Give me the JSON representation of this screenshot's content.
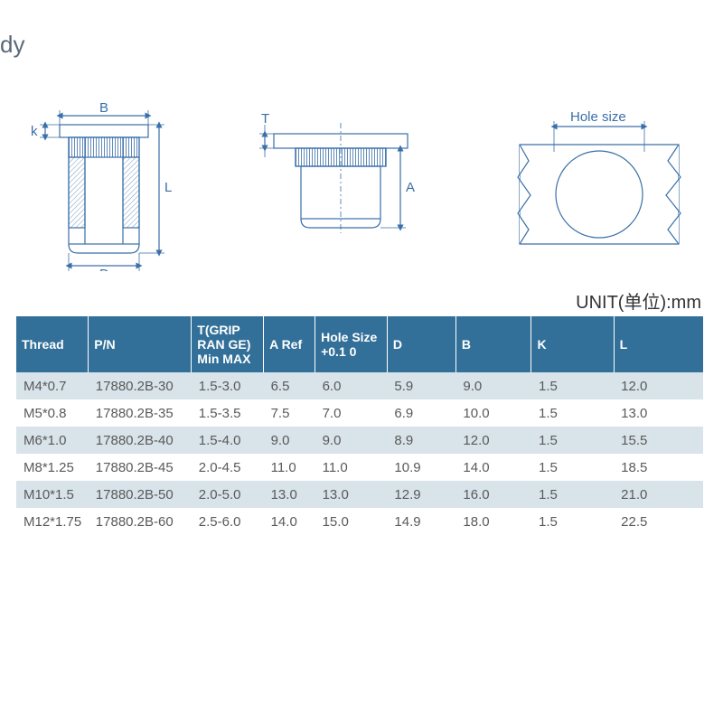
{
  "title_fragment": "dy",
  "unit_label": "UNIT(单位):mm",
  "diagram": {
    "stroke": "#3a6fa8",
    "stroke_width": 1.2,
    "hatch_spacing": 3,
    "labels": {
      "B": "B",
      "k": "k",
      "L": "L",
      "D": "D",
      "T": "T",
      "A": "A",
      "HoleSize": "Hole size"
    },
    "label_color": "#3a6fa8",
    "label_fontsize": 15
  },
  "table": {
    "header_bg": "#337099",
    "header_color": "#ffffff",
    "row_alt_bg": "#d8e3ea",
    "row_bg": "#ffffff",
    "header_fontsize": 14,
    "cell_fontsize": 15,
    "columns": [
      {
        "key": "thread",
        "label": "Thread"
      },
      {
        "key": "pn",
        "label": "P/N"
      },
      {
        "key": "t",
        "label": "T(GRIP RAN GE) Min MAX"
      },
      {
        "key": "a",
        "label": "A Ref"
      },
      {
        "key": "hole",
        "label": "Hole Size +0.1 0"
      },
      {
        "key": "d",
        "label": "D"
      },
      {
        "key": "b",
        "label": "B"
      },
      {
        "key": "k",
        "label": "K"
      },
      {
        "key": "l",
        "label": "L"
      }
    ],
    "rows": [
      {
        "thread": "M4*0.7",
        "pn": "17880.2B-30",
        "t": "1.5-3.0",
        "a": "6.5",
        "hole": "6.0",
        "d": "5.9",
        "b": "9.0",
        "k": "1.5",
        "l": "12.0"
      },
      {
        "thread": "M5*0.8",
        "pn": "17880.2B-35",
        "t": "1.5-3.5",
        "a": "7.5",
        "hole": "7.0",
        "d": "6.9",
        "b": "10.0",
        "k": "1.5",
        "l": "13.0"
      },
      {
        "thread": "M6*1.0",
        "pn": "17880.2B-40",
        "t": "1.5-4.0",
        "a": "9.0",
        "hole": "9.0",
        "d": "8.9",
        "b": "12.0",
        "k": "1.5",
        "l": "15.5"
      },
      {
        "thread": "M8*1.25",
        "pn": "17880.2B-45",
        "t": "2.0-4.5",
        "a": "11.0",
        "hole": "11.0",
        "d": "10.9",
        "b": "14.0",
        "k": "1.5",
        "l": "18.5"
      },
      {
        "thread": "M10*1.5",
        "pn": "17880.2B-50",
        "t": "2.0-5.0",
        "a": "13.0",
        "hole": "13.0",
        "d": "12.9",
        "b": "16.0",
        "k": "1.5",
        "l": "21.0"
      },
      {
        "thread": "M12*1.75",
        "pn": "17880.2B-60",
        "t": "2.5-6.0",
        "a": "14.0",
        "hole": "15.0",
        "d": "14.9",
        "b": "18.0",
        "k": "1.5",
        "l": "22.5"
      }
    ]
  }
}
